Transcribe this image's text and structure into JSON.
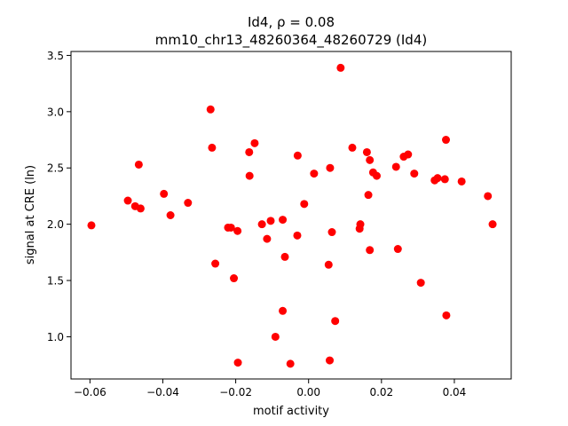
{
  "chart_data": {
    "type": "scatter",
    "title_line1": "Id4, ρ = 0.08",
    "title_line2": "mm10_chr13_48260364_48260729 (Id4)",
    "xlabel": "motif activity",
    "ylabel": "signal at CRE (ln)",
    "xlim": [
      -0.0652,
      0.0556
    ],
    "ylim": [
      0.625,
      3.535
    ],
    "xticks": [
      -0.06,
      -0.04,
      -0.02,
      0.0,
      0.02,
      0.04
    ],
    "xtick_labels": [
      "−0.06",
      "−0.04",
      "−0.02",
      "0.00",
      "0.02",
      "0.04"
    ],
    "yticks": [
      1.0,
      1.5,
      2.0,
      2.5,
      3.0,
      3.5
    ],
    "ytick_labels": [
      "1.0",
      "1.5",
      "2.0",
      "2.5",
      "3.0",
      "3.5"
    ],
    "grid": false,
    "marker_color": "#ff0000",
    "points": [
      {
        "x": -0.0596,
        "y": 1.99
      },
      {
        "x": -0.0496,
        "y": 2.21
      },
      {
        "x": -0.0476,
        "y": 2.16
      },
      {
        "x": -0.0461,
        "y": 2.14
      },
      {
        "x": -0.0466,
        "y": 2.53
      },
      {
        "x": -0.0397,
        "y": 2.27
      },
      {
        "x": -0.0379,
        "y": 2.08
      },
      {
        "x": -0.0331,
        "y": 2.19
      },
      {
        "x": -0.0269,
        "y": 3.02
      },
      {
        "x": -0.0265,
        "y": 2.68
      },
      {
        "x": -0.0256,
        "y": 1.65
      },
      {
        "x": -0.0221,
        "y": 1.97
      },
      {
        "x": -0.0213,
        "y": 1.97
      },
      {
        "x": -0.0205,
        "y": 1.52
      },
      {
        "x": -0.0195,
        "y": 1.94
      },
      {
        "x": -0.0194,
        "y": 0.77
      },
      {
        "x": -0.0163,
        "y": 2.64
      },
      {
        "x": -0.0162,
        "y": 2.43
      },
      {
        "x": -0.0148,
        "y": 2.72
      },
      {
        "x": -0.0128,
        "y": 2.0
      },
      {
        "x": -0.0114,
        "y": 1.87
      },
      {
        "x": -0.0104,
        "y": 2.03
      },
      {
        "x": -0.0091,
        "y": 1.0
      },
      {
        "x": -0.0071,
        "y": 2.04
      },
      {
        "x": -0.0071,
        "y": 1.23
      },
      {
        "x": -0.0065,
        "y": 1.71
      },
      {
        "x": -0.005,
        "y": 0.76
      },
      {
        "x": -0.003,
        "y": 2.61
      },
      {
        "x": -0.0031,
        "y": 1.9
      },
      {
        "x": -0.0012,
        "y": 2.18
      },
      {
        "x": 0.0015,
        "y": 2.45
      },
      {
        "x": 0.0055,
        "y": 1.64
      },
      {
        "x": 0.0058,
        "y": 0.79
      },
      {
        "x": 0.0059,
        "y": 2.5
      },
      {
        "x": 0.0064,
        "y": 1.93
      },
      {
        "x": 0.0073,
        "y": 1.14
      },
      {
        "x": 0.0088,
        "y": 3.39
      },
      {
        "x": 0.012,
        "y": 2.68
      },
      {
        "x": 0.014,
        "y": 1.96
      },
      {
        "x": 0.0142,
        "y": 2.0
      },
      {
        "x": 0.016,
        "y": 2.64
      },
      {
        "x": 0.0164,
        "y": 2.26
      },
      {
        "x": 0.0168,
        "y": 2.57
      },
      {
        "x": 0.0168,
        "y": 1.77
      },
      {
        "x": 0.0177,
        "y": 2.46
      },
      {
        "x": 0.0187,
        "y": 2.43
      },
      {
        "x": 0.024,
        "y": 2.51
      },
      {
        "x": 0.0245,
        "y": 1.78
      },
      {
        "x": 0.0261,
        "y": 2.6
      },
      {
        "x": 0.0273,
        "y": 2.62
      },
      {
        "x": 0.029,
        "y": 2.45
      },
      {
        "x": 0.0308,
        "y": 1.48
      },
      {
        "x": 0.0346,
        "y": 2.39
      },
      {
        "x": 0.0354,
        "y": 2.41
      },
      {
        "x": 0.0374,
        "y": 2.4
      },
      {
        "x": 0.0377,
        "y": 2.75
      },
      {
        "x": 0.0378,
        "y": 1.19
      },
      {
        "x": 0.042,
        "y": 2.38
      },
      {
        "x": 0.0492,
        "y": 2.25
      },
      {
        "x": 0.0505,
        "y": 2.0
      }
    ]
  }
}
